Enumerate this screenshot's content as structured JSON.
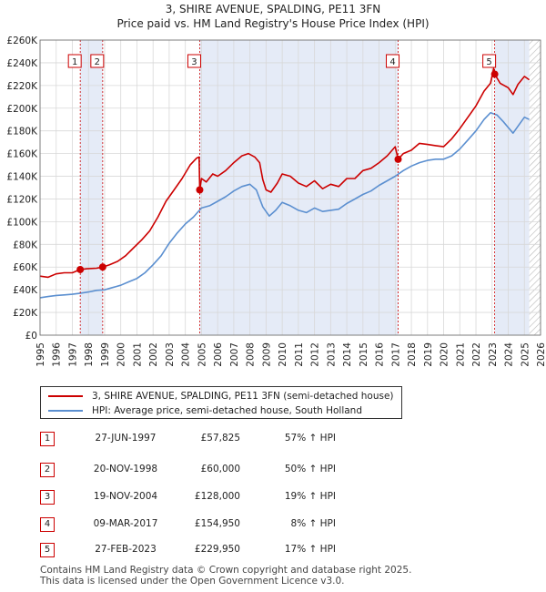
{
  "chart_data": {
    "type": "line",
    "title": "3, SHIRE AVENUE, SPALDING, PE11 3FN",
    "subtitle": "Price paid vs. HM Land Registry's House Price Index (HPI)",
    "xlim": [
      1995,
      2026
    ],
    "ylim": [
      0,
      260000
    ],
    "x_ticks": [
      "1995",
      "1996",
      "1997",
      "1998",
      "1999",
      "2000",
      "2001",
      "2002",
      "2003",
      "2004",
      "2005",
      "2006",
      "2007",
      "2008",
      "2009",
      "2010",
      "2011",
      "2012",
      "2013",
      "2014",
      "2015",
      "2016",
      "2017",
      "2018",
      "2019",
      "2020",
      "2021",
      "2022",
      "2023",
      "2024",
      "2025",
      "2026"
    ],
    "y_ticks": [
      {
        "value": 0,
        "label": "£0"
      },
      {
        "value": 20000,
        "label": "£20K"
      },
      {
        "value": 40000,
        "label": "£40K"
      },
      {
        "value": 60000,
        "label": "£60K"
      },
      {
        "value": 80000,
        "label": "£80K"
      },
      {
        "value": 100000,
        "label": "£100K"
      },
      {
        "value": 120000,
        "label": "£120K"
      },
      {
        "value": 140000,
        "label": "£140K"
      },
      {
        "value": 160000,
        "label": "£160K"
      },
      {
        "value": 180000,
        "label": "£180K"
      },
      {
        "value": 200000,
        "label": "£200K"
      },
      {
        "value": 220000,
        "label": "£220K"
      },
      {
        "value": 240000,
        "label": "£240K"
      },
      {
        "value": 260000,
        "label": "£260K"
      }
    ],
    "grid": true,
    "series": [
      {
        "name": "3, SHIRE AVENUE, SPALDING, PE11 3FN (semi-detached house)",
        "color": "#cc0000",
        "points": [
          [
            1995.0,
            52000
          ],
          [
            1995.5,
            51000
          ],
          [
            1996.0,
            54000
          ],
          [
            1996.5,
            55000
          ],
          [
            1997.0,
            55000
          ],
          [
            1997.49,
            57825
          ],
          [
            1997.9,
            58500
          ],
          [
            1998.5,
            59000
          ],
          [
            1998.88,
            60000
          ],
          [
            1999.3,
            62000
          ],
          [
            1999.8,
            65000
          ],
          [
            2000.3,
            70000
          ],
          [
            2000.8,
            77000
          ],
          [
            2001.3,
            84000
          ],
          [
            2001.8,
            92000
          ],
          [
            2002.3,
            104000
          ],
          [
            2002.8,
            118000
          ],
          [
            2003.3,
            128000
          ],
          [
            2003.8,
            138000
          ],
          [
            2004.3,
            150000
          ],
          [
            2004.7,
            156000
          ],
          [
            2004.85,
            157000
          ],
          [
            2004.89,
            128000
          ],
          [
            2005.0,
            138000
          ],
          [
            2005.3,
            135000
          ],
          [
            2005.7,
            142000
          ],
          [
            2006.0,
            140000
          ],
          [
            2006.5,
            145000
          ],
          [
            2007.0,
            152000
          ],
          [
            2007.5,
            158000
          ],
          [
            2007.9,
            160000
          ],
          [
            2008.3,
            157000
          ],
          [
            2008.6,
            152000
          ],
          [
            2008.8,
            137000
          ],
          [
            2009.0,
            128000
          ],
          [
            2009.3,
            126000
          ],
          [
            2009.7,
            134000
          ],
          [
            2010.0,
            142000
          ],
          [
            2010.5,
            140000
          ],
          [
            2011.0,
            134000
          ],
          [
            2011.5,
            131000
          ],
          [
            2012.0,
            136000
          ],
          [
            2012.5,
            129000
          ],
          [
            2013.0,
            133000
          ],
          [
            2013.5,
            131000
          ],
          [
            2014.0,
            138000
          ],
          [
            2014.5,
            138000
          ],
          [
            2015.0,
            145000
          ],
          [
            2015.5,
            147000
          ],
          [
            2016.0,
            152000
          ],
          [
            2016.5,
            158000
          ],
          [
            2017.0,
            166000
          ],
          [
            2017.18,
            154950
          ],
          [
            2017.5,
            160000
          ],
          [
            2018.0,
            163000
          ],
          [
            2018.5,
            169000
          ],
          [
            2019.0,
            168000
          ],
          [
            2019.5,
            167000
          ],
          [
            2020.0,
            166000
          ],
          [
            2020.5,
            173000
          ],
          [
            2021.0,
            182000
          ],
          [
            2021.5,
            192000
          ],
          [
            2022.0,
            202000
          ],
          [
            2022.5,
            215000
          ],
          [
            2022.9,
            222000
          ],
          [
            2023.1,
            235000
          ],
          [
            2023.16,
            229950
          ],
          [
            2023.5,
            222000
          ],
          [
            2024.0,
            218000
          ],
          [
            2024.3,
            212000
          ],
          [
            2024.6,
            221000
          ],
          [
            2025.0,
            228000
          ],
          [
            2025.3,
            225000
          ]
        ]
      },
      {
        "name": "HPI: Average price, semi-detached house, South Holland",
        "color": "#5b8fd0",
        "points": [
          [
            1995.0,
            33000
          ],
          [
            1995.5,
            34000
          ],
          [
            1996.0,
            35000
          ],
          [
            1996.5,
            35500
          ],
          [
            1997.0,
            36000
          ],
          [
            1997.5,
            37000
          ],
          [
            1998.0,
            38000
          ],
          [
            1998.5,
            39500
          ],
          [
            1999.0,
            40000
          ],
          [
            1999.5,
            42000
          ],
          [
            2000.0,
            44000
          ],
          [
            2000.5,
            47000
          ],
          [
            2001.0,
            50000
          ],
          [
            2001.5,
            55000
          ],
          [
            2002.0,
            62000
          ],
          [
            2002.5,
            70000
          ],
          [
            2003.0,
            81000
          ],
          [
            2003.5,
            90000
          ],
          [
            2004.0,
            98000
          ],
          [
            2004.5,
            104000
          ],
          [
            2005.0,
            112000
          ],
          [
            2005.5,
            114000
          ],
          [
            2006.0,
            118000
          ],
          [
            2006.5,
            122000
          ],
          [
            2007.0,
            127000
          ],
          [
            2007.5,
            131000
          ],
          [
            2008.0,
            133000
          ],
          [
            2008.4,
            128000
          ],
          [
            2008.8,
            113000
          ],
          [
            2009.2,
            105000
          ],
          [
            2009.6,
            110000
          ],
          [
            2010.0,
            117000
          ],
          [
            2010.5,
            114000
          ],
          [
            2011.0,
            110000
          ],
          [
            2011.5,
            108000
          ],
          [
            2012.0,
            112000
          ],
          [
            2012.5,
            109000
          ],
          [
            2013.0,
            110000
          ],
          [
            2013.5,
            111000
          ],
          [
            2014.0,
            116000
          ],
          [
            2014.5,
            120000
          ],
          [
            2015.0,
            124000
          ],
          [
            2015.5,
            127000
          ],
          [
            2016.0,
            132000
          ],
          [
            2016.5,
            136000
          ],
          [
            2017.0,
            140000
          ],
          [
            2017.5,
            145000
          ],
          [
            2018.0,
            149000
          ],
          [
            2018.5,
            152000
          ],
          [
            2019.0,
            154000
          ],
          [
            2019.5,
            155000
          ],
          [
            2020.0,
            155000
          ],
          [
            2020.5,
            158000
          ],
          [
            2021.0,
            164000
          ],
          [
            2021.5,
            172000
          ],
          [
            2022.0,
            180000
          ],
          [
            2022.5,
            190000
          ],
          [
            2022.9,
            196000
          ],
          [
            2023.3,
            194000
          ],
          [
            2023.7,
            188000
          ],
          [
            2024.0,
            183000
          ],
          [
            2024.3,
            178000
          ],
          [
            2024.7,
            186000
          ],
          [
            2025.0,
            192000
          ],
          [
            2025.3,
            190000
          ]
        ]
      }
    ],
    "sales": [
      {
        "label": "1",
        "x": 1997.49,
        "price": 57825
      },
      {
        "label": "2",
        "x": 1998.88,
        "price": 60000
      },
      {
        "label": "3",
        "x": 2004.89,
        "price": 128000
      },
      {
        "label": "4",
        "x": 2017.18,
        "price": 154950
      },
      {
        "label": "5",
        "x": 2023.16,
        "price": 229950
      }
    ],
    "shaded_ranges": [
      [
        1997.49,
        1998.88
      ],
      [
        2004.89,
        2017.18
      ],
      [
        2023.16,
        2025.3
      ]
    ],
    "future_hatch_from": 2025.3
  },
  "legend": [
    {
      "label": "3, SHIRE AVENUE, SPALDING, PE11 3FN (semi-detached house)",
      "color": "#cc0000"
    },
    {
      "label": "HPI: Average price, semi-detached house, South Holland",
      "color": "#5b8fd0"
    }
  ],
  "transactions": [
    {
      "num": "1",
      "date": "27-JUN-1997",
      "price": "£57,825",
      "hpi": "57% ↑ HPI"
    },
    {
      "num": "2",
      "date": "20-NOV-1998",
      "price": "£60,000",
      "hpi": "50% ↑ HPI"
    },
    {
      "num": "3",
      "date": "19-NOV-2004",
      "price": "£128,000",
      "hpi": "19% ↑ HPI"
    },
    {
      "num": "4",
      "date": "09-MAR-2017",
      "price": "£154,950",
      "hpi": "8% ↑ HPI"
    },
    {
      "num": "5",
      "date": "27-FEB-2023",
      "price": "£229,950",
      "hpi": "17% ↑ HPI"
    }
  ],
  "footer": {
    "line1": "Contains HM Land Registry data © Crown copyright and database right 2025.",
    "line2": "This data is licensed under the Open Government Licence v3.0."
  }
}
